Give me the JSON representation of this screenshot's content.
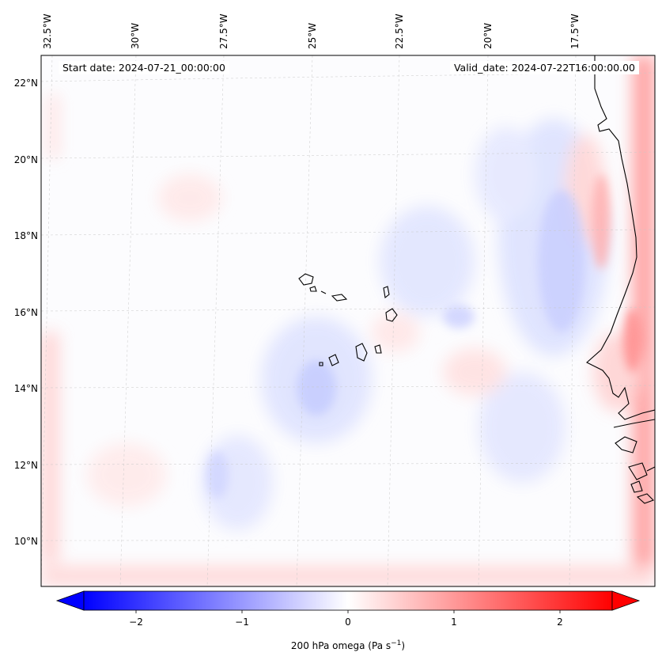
{
  "header": {
    "start_date": "Start date: 2024-07-21_00:00:00",
    "valid_date": "Valid_date: 2024-07-22T16:00:00.00"
  },
  "map": {
    "lon_labels": [
      "32.5°W",
      "30°W",
      "27.5°W",
      "25°W",
      "22.5°W",
      "20°W",
      "17.5°W"
    ],
    "lat_labels": [
      "22°N",
      "20°N",
      "18°N",
      "16°N",
      "14°N",
      "12°N",
      "10°N"
    ],
    "colors": {
      "neg": "#0000ff",
      "zero": "#ffffff",
      "pos": "#ff0000",
      "coast": "#000000"
    }
  },
  "colorbar": {
    "ticks": [
      "−2",
      "−1",
      "0",
      "1",
      "2"
    ],
    "label_text": "200 hPa omega (Pa s",
    "label_sup": "−1",
    "label_close": ")"
  }
}
